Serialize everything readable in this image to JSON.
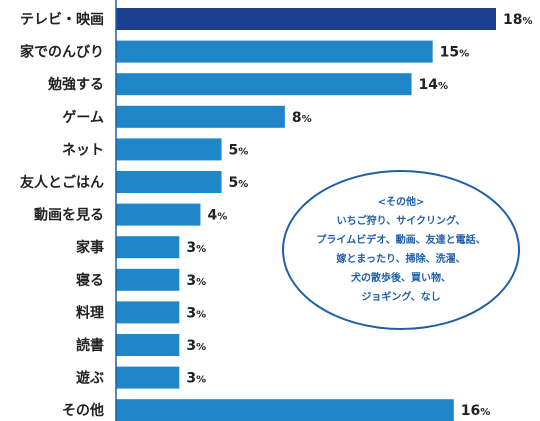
{
  "chart_data": {
    "type": "bar",
    "orientation": "horizontal",
    "categories": [
      "テレビ・映画",
      "家でのんびり",
      "勉強する",
      "ゲーム",
      "ネット",
      "友人とごはん",
      "動画を見る",
      "家事",
      "寝る",
      "料理",
      "読書",
      "遊ぶ",
      "その他"
    ],
    "values": [
      18,
      15,
      14,
      8,
      5,
      5,
      4,
      3,
      3,
      3,
      3,
      3,
      16
    ],
    "value_suffix": "%",
    "highlight_index": 0,
    "colors": {
      "highlight": "#1d3f8f",
      "bar": "#1f86c8",
      "axis": "#1f5fa8",
      "note_border": "#1f5fa8"
    },
    "xlim": [
      0,
      18
    ],
    "grid": false,
    "legend": "none"
  },
  "note": {
    "title": "<その他>",
    "lines": [
      "いちご狩り、サイクリング、",
      "プライムビデオ、動画、友達と電話、",
      "嫁とまったり、掃除、洗濯、",
      "犬の散歩後、買い物、",
      "ジョギング、なし"
    ]
  }
}
